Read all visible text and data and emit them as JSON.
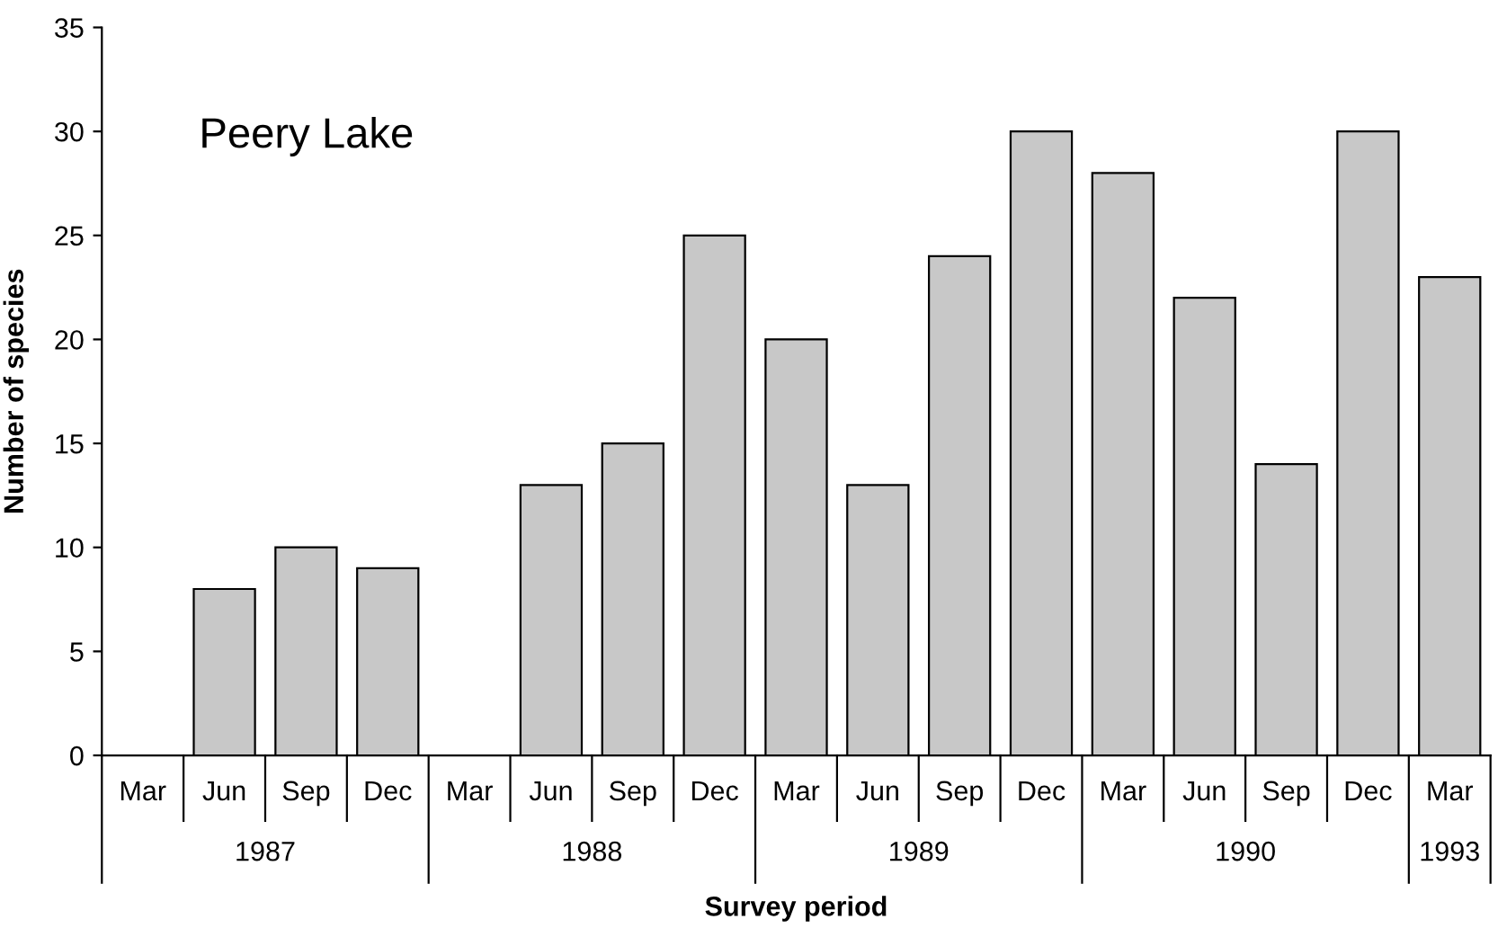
{
  "chart_data": {
    "type": "bar",
    "xlabel": "Survey period",
    "ylabel": "Number of species",
    "categories": [
      "Mar",
      "Jun",
      "Sep",
      "Dec",
      "Mar",
      "Jun",
      "Sep",
      "Dec",
      "Mar",
      "Jun",
      "Sep",
      "Dec",
      "Mar",
      "Jun",
      "Sep",
      "Dec",
      "Mar"
    ],
    "values": [
      null,
      8,
      10,
      9,
      null,
      13,
      15,
      25,
      20,
      13,
      24,
      30,
      28,
      22,
      14,
      30,
      23
    ],
    "color": "#c8c8c8",
    "ylim": [
      0,
      35
    ],
    "yticks": [
      0,
      5,
      10,
      15,
      20,
      25,
      30,
      35
    ],
    "grid": false,
    "annotations": [
      "Peery Lake",
      "1987",
      "1988",
      "1989",
      "1990",
      "1993"
    ]
  }
}
